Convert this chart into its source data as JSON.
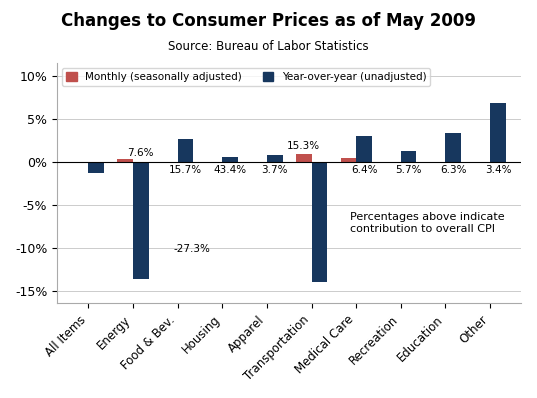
{
  "title": "Changes to Consumer Prices as of May 2009",
  "subtitle": "Source: Bureau of Labor Statistics",
  "categories": [
    "All Items",
    "Energy",
    "Food & Bev.",
    "Housing",
    "Apparel",
    "Transportation",
    "Medical Care",
    "Recreation",
    "Education",
    "Other"
  ],
  "monthly": [
    -0.1,
    0.3,
    -0.1,
    -0.1,
    -0.2,
    0.9,
    0.4,
    -0.1,
    -0.2,
    -0.2
  ],
  "yoy": [
    -1.3,
    -13.6,
    2.6,
    0.5,
    0.8,
    -14.0,
    3.0,
    1.2,
    3.3,
    6.8
  ],
  "monthly_color": "#c0504d",
  "yoy_color": "#17375e",
  "ylim": [
    -16.5,
    11.5
  ],
  "yticks": [
    -15,
    -10,
    -5,
    0,
    5,
    10
  ],
  "yticklabels": [
    "-15%",
    "-10%",
    "-5%",
    "0%",
    "5%",
    "10%"
  ],
  "background_color": "#ffffff",
  "annotation_text": "Percentages above indicate\ncontribution to overall CPI",
  "legend_monthly": "Monthly (seasonally adjusted)",
  "legend_yoy": "Year-over-year (unadjusted)"
}
